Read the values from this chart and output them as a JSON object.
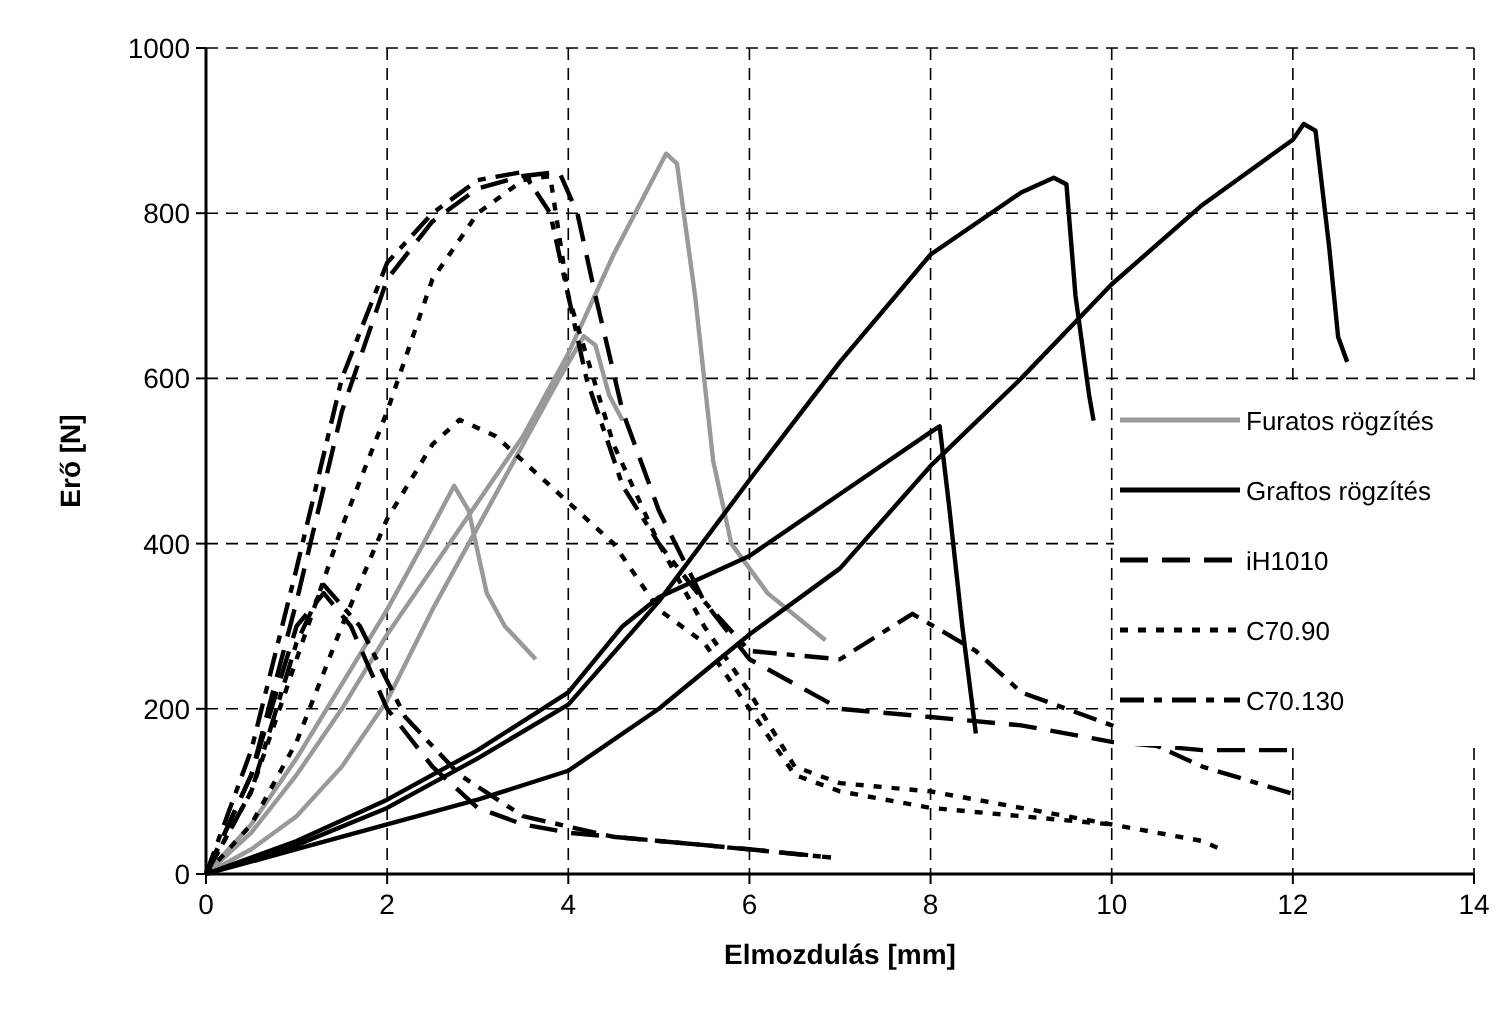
{
  "chart_data": {
    "type": "line",
    "xlabel": "Elmozdulás [mm]",
    "ylabel": "Erő [N]",
    "xlim": [
      0,
      14
    ],
    "xticks": [
      0,
      2,
      4,
      6,
      8,
      10,
      12,
      14
    ],
    "ylim": [
      0,
      1000
    ],
    "yticks": [
      0,
      200,
      400,
      600,
      800,
      1000
    ],
    "grid": true,
    "legend": "right",
    "marker": "none",
    "series": [
      {
        "name": "Furatos rögzítés",
        "color": "#999999",
        "line_style": "solid",
        "x": [
          0,
          0.5,
          1,
          1.5,
          2,
          2.4,
          2.74,
          2.9,
          3.1,
          3.3,
          3.64
        ],
        "values": [
          0,
          60,
          140,
          230,
          320,
          400,
          470,
          440,
          340,
          300,
          260
        ]
      },
      {
        "color": "#999999",
        "line_style": "solid",
        "x": [
          0,
          0.5,
          1,
          1.5,
          2,
          2.5,
          3,
          3.5,
          3.9,
          4.17,
          4.3,
          4.45,
          4.6
        ],
        "values": [
          0,
          30,
          70,
          130,
          210,
          320,
          420,
          520,
          600,
          651,
          640,
          580,
          549
        ]
      },
      {
        "color": "#999999",
        "line_style": "solid",
        "x": [
          0,
          0.5,
          1,
          1.5,
          2,
          2.5,
          3,
          3.5,
          4,
          4.5,
          5.08,
          5.2,
          5.4,
          5.6,
          5.8,
          6.2,
          6.84
        ],
        "values": [
          0,
          50,
          120,
          200,
          290,
          370,
          450,
          530,
          630,
          750,
          872,
          860,
          700,
          500,
          400,
          340,
          283
        ]
      },
      {
        "name": "Graftos rögzítés",
        "color": "#000000",
        "line_style": "solid",
        "x": [
          0,
          1,
          2,
          3,
          4,
          5,
          6,
          7,
          8,
          9,
          9.36,
          9.5,
          9.6,
          9.75,
          9.8
        ],
        "values": [
          0,
          35,
          80,
          140,
          205,
          330,
          477,
          620,
          750,
          825,
          843,
          835,
          700,
          580,
          549
        ]
      },
      {
        "color": "#000000",
        "line_style": "solid",
        "x": [
          0,
          1,
          2,
          3,
          4,
          4.6,
          5,
          6,
          7,
          8,
          8.1,
          8.2,
          8.35,
          8.5
        ],
        "values": [
          0,
          40,
          90,
          150,
          220,
          300,
          335,
          385,
          460,
          535,
          542,
          450,
          300,
          170
        ]
      },
      {
        "color": "#000000",
        "line_style": "solid",
        "x": [
          0,
          1,
          2,
          3,
          4,
          5,
          6,
          7,
          8,
          9,
          10,
          11,
          12,
          12.12,
          12.25,
          12.4,
          12.5,
          12.6
        ],
        "values": [
          0,
          30,
          60,
          90,
          125,
          200,
          290,
          370,
          494,
          600,
          714,
          810,
          889,
          908,
          900,
          760,
          650,
          620
        ]
      },
      {
        "name": "iH1010",
        "color": "#000000",
        "line_style": "dashed",
        "x": [
          0,
          0.5,
          1,
          1.5,
          2,
          2.5,
          3,
          3.5,
          3.9,
          4.1,
          4.3,
          4.6,
          5,
          5.5,
          6,
          6.5,
          7,
          8,
          9,
          10,
          11,
          12
        ],
        "values": [
          0,
          120,
          330,
          560,
          720,
          790,
          830,
          845,
          850,
          800,
          700,
          560,
          440,
          330,
          260,
          230,
          200,
          190,
          180,
          160,
          150,
          150
        ]
      },
      {
        "color": "#000000",
        "line_style": "dashed",
        "x": [
          0,
          0.5,
          1,
          1.3,
          1.6,
          2,
          2.5,
          3,
          3.5,
          4,
          5,
          6,
          6.9
        ],
        "values": [
          0,
          120,
          300,
          340,
          300,
          200,
          130,
          80,
          60,
          50,
          40,
          30,
          20
        ]
      },
      {
        "name": "C70.90",
        "color": "#000000",
        "line_style": "dotted",
        "x": [
          0,
          0.5,
          1,
          1.5,
          2,
          2.5,
          3,
          3.5,
          3.8,
          4,
          4.5,
          5,
          5.5,
          6,
          6.5,
          7,
          8,
          9,
          10,
          11,
          11.2
        ],
        "values": [
          0,
          100,
          260,
          420,
          560,
          720,
          800,
          840,
          845,
          700,
          520,
          400,
          300,
          220,
          130,
          110,
          100,
          80,
          60,
          40,
          30
        ]
      },
      {
        "color": "#000000",
        "line_style": "dotted",
        "x": [
          0,
          0.5,
          1,
          1.5,
          2,
          2.5,
          2.8,
          3.2,
          3.5,
          4,
          4.5,
          5,
          5.5,
          6,
          6.5,
          7,
          8,
          9,
          10
        ],
        "values": [
          0,
          60,
          160,
          300,
          430,
          520,
          550,
          530,
          500,
          450,
          400,
          320,
          280,
          200,
          120,
          100,
          80,
          70,
          60
        ]
      },
      {
        "name": "C70.130",
        "color": "#000000",
        "line_style": "dashdot",
        "x": [
          0,
          0.5,
          1,
          1.5,
          2,
          2.5,
          3,
          3.5,
          3.8,
          4.2,
          4.6,
          5,
          5.5,
          6,
          7,
          7.8,
          8.5,
          9,
          10,
          11,
          12
        ],
        "values": [
          0,
          150,
          370,
          600,
          740,
          800,
          840,
          850,
          800,
          600,
          470,
          400,
          330,
          270,
          260,
          315,
          270,
          220,
          180,
          130,
          97
        ]
      },
      {
        "color": "#000000",
        "line_style": "dashdot",
        "x": [
          0,
          0.5,
          1,
          1.3,
          1.7,
          2.2,
          2.8,
          3.5,
          4.5,
          5.5,
          6.9
        ],
        "values": [
          0,
          100,
          280,
          350,
          300,
          190,
          120,
          70,
          45,
          35,
          20
        ]
      }
    ]
  }
}
